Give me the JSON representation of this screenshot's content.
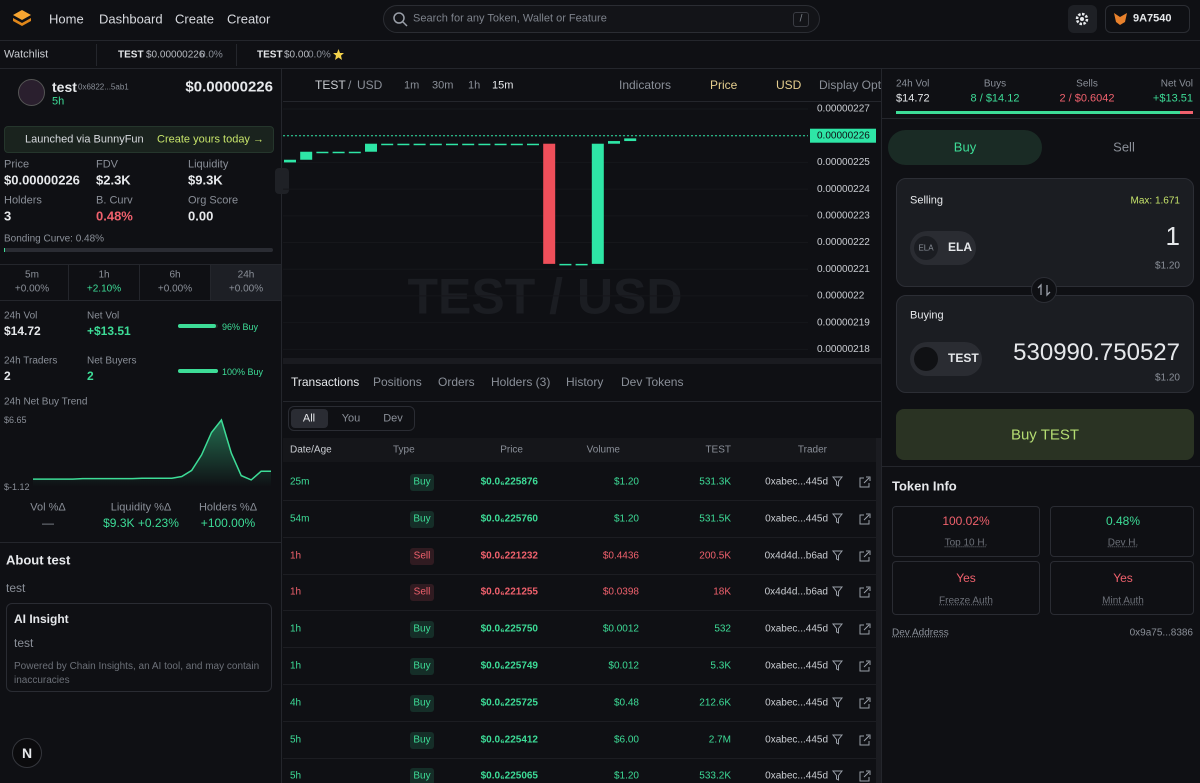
{
  "nav": {
    "links": [
      "Home",
      "Dashboard",
      "Create",
      "Creator"
    ],
    "search_placeholder": "Search for any Token, Wallet or Feature",
    "search_shortcut": "/",
    "wallet": "9A7540"
  },
  "watchlist": {
    "label": "Watchlist",
    "items": [
      {
        "symbol": "TEST",
        "price": "$0.00000226",
        "change": "0.0%"
      },
      {
        "symbol": "TEST",
        "price": "$0.00",
        "change": "0.0%"
      }
    ]
  },
  "token": {
    "name": "test",
    "address": "0x6822...5ab1",
    "age": "5h",
    "price": "$0.00000226"
  },
  "launch_banner": {
    "text": "Launched via BunnyFun",
    "link": "Create yours today →"
  },
  "stats": [
    {
      "label": "Price",
      "value": "$0.00000226"
    },
    {
      "label": "FDV",
      "value": "$2.3K"
    },
    {
      "label": "Liquidity",
      "value": "$9.3K"
    },
    {
      "label": "Holders",
      "value": "3"
    },
    {
      "label": "B. Curv",
      "value": "0.48%",
      "color": "#f0616d"
    },
    {
      "label": "Org Score",
      "value": "0.00"
    }
  ],
  "bonding_curve": {
    "label": "Bonding Curve: 0.48%",
    "percent": 0.48
  },
  "timeframes": [
    {
      "label": "5m",
      "change": "+0.00%",
      "color": "#8a8f98"
    },
    {
      "label": "1h",
      "change": "+2.10%",
      "color": "#3ddc97"
    },
    {
      "label": "6h",
      "change": "+0.00%",
      "color": "#8a8f98"
    },
    {
      "label": "24h",
      "change": "+0.00%",
      "color": "#8a8f98"
    }
  ],
  "activity": [
    {
      "label": "24h Vol",
      "value": "$14.72",
      "color": "#e6e8eb"
    },
    {
      "label": "Net Vol",
      "value": "+$13.51",
      "color": "#3ddc97"
    },
    {
      "label": "24h Traders",
      "value": "2",
      "color": "#e6e8eb"
    },
    {
      "label": "Net Buyers",
      "value": "2",
      "color": "#3ddc97"
    }
  ],
  "buy_ratios": [
    {
      "label": "96% Buy",
      "value": 96
    },
    {
      "label": "100% Buy",
      "value": 100
    }
  ],
  "trend": {
    "title": "24h Net Buy Trend",
    "ylim": [
      -1.12,
      6.65
    ],
    "yticks": [
      {
        "value": 6.65,
        "label": "$6.65"
      },
      {
        "value": -1.12,
        "label": "$-1.12"
      }
    ],
    "color": "#3ddc97",
    "values": [
      -0.2,
      -0.2,
      -0.2,
      -0.2,
      -0.2,
      -0.15,
      -0.15,
      -0.15,
      -0.15,
      -0.15,
      -0.15,
      -0.1,
      -0.1,
      -0.1,
      -0.1,
      0.1,
      0.8,
      2.6,
      5.2,
      6.65,
      2.8,
      0.2,
      -0.3,
      0.7,
      0.7
    ]
  },
  "deltas": [
    {
      "label": "Vol %Δ",
      "value": "—",
      "color": "#8a8f98"
    },
    {
      "label": "Liquidity %Δ",
      "value": "$9.3K +0.23%",
      "color": "#3ddc97"
    },
    {
      "label": "Holders %Δ",
      "value": "+100.00%",
      "color": "#3ddc97"
    }
  ],
  "about": {
    "title": "About test",
    "description": "test"
  },
  "ai_insight": {
    "title": "AI Insight",
    "text": "test",
    "disclaimer": "Powered by Chain Insights, an AI tool, and may contain inaccuracies"
  },
  "avatar_letter": "N",
  "chart_toolbar": {
    "base": "TEST",
    "separator": "/",
    "quote": "USD",
    "intervals": [
      "1m",
      "30m",
      "1h",
      "15m"
    ],
    "indicators": "Indicators",
    "price": "Price",
    "currency": "USD",
    "display": "Display Options"
  },
  "chart_data": {
    "type": "candlestick",
    "watermark": "TEST / USD",
    "up_color": "#2ee6a6",
    "down_color": "#ef4f5a",
    "grid": true,
    "ylim": [
      2.176e-06,
      2.273e-06
    ],
    "yticks": [
      2.27e-06,
      2.26e-06,
      2.25e-06,
      2.24e-06,
      2.23e-06,
      2.22e-06,
      2.21e-06,
      2.2e-06,
      2.19e-06,
      2.18e-06
    ],
    "current_price": 2.26e-06,
    "open": [
      2.25e-06,
      2.251e-06,
      2.254e-06,
      2.254e-06,
      2.254e-06,
      2.254e-06,
      2.257e-06,
      2.257e-06,
      2.257e-06,
      2.257e-06,
      2.257e-06,
      2.257e-06,
      2.257e-06,
      2.257e-06,
      2.257e-06,
      2.257e-06,
      2.257e-06,
      2.212e-06,
      2.212e-06,
      2.212e-06,
      2.257e-06,
      2.258e-06
    ],
    "close": [
      2.251e-06,
      2.254e-06,
      2.254e-06,
      2.254e-06,
      2.254e-06,
      2.257e-06,
      2.257e-06,
      2.257e-06,
      2.257e-06,
      2.257e-06,
      2.257e-06,
      2.257e-06,
      2.257e-06,
      2.257e-06,
      2.257e-06,
      2.257e-06,
      2.212e-06,
      2.212e-06,
      2.212e-06,
      2.257e-06,
      2.258e-06,
      2.259e-06
    ]
  },
  "transactions": {
    "tabs": [
      "Transactions",
      "Positions",
      "Orders",
      "Holders (3)",
      "History",
      "Dev Tokens"
    ],
    "filters": [
      "All",
      "You",
      "Dev"
    ],
    "columns": [
      "Date/Age",
      "Type",
      "Price",
      "Volume",
      "TEST",
      "Trader"
    ],
    "rows": [
      {
        "age": "25m",
        "type": "Buy",
        "price": "$0.0₆225876",
        "volume": "$1.20",
        "amount": "531.3K",
        "trader": "0xabec...445d",
        "color": "#3ddc97"
      },
      {
        "age": "54m",
        "type": "Buy",
        "price": "$0.0₆225760",
        "volume": "$1.20",
        "amount": "531.5K",
        "trader": "0xabec...445d",
        "color": "#3ddc97"
      },
      {
        "age": "1h",
        "type": "Sell",
        "price": "$0.0₆221232",
        "volume": "$0.4436",
        "amount": "200.5K",
        "trader": "0x4d4d...b6ad",
        "color": "#f0616d"
      },
      {
        "age": "1h",
        "type": "Sell",
        "price": "$0.0₆221255",
        "volume": "$0.0398",
        "amount": "18K",
        "trader": "0x4d4d...b6ad",
        "color": "#f0616d"
      },
      {
        "age": "1h",
        "type": "Buy",
        "price": "$0.0₆225750",
        "volume": "$0.0012",
        "amount": "532",
        "trader": "0xabec...445d",
        "color": "#3ddc97"
      },
      {
        "age": "1h",
        "type": "Buy",
        "price": "$0.0₆225749",
        "volume": "$0.012",
        "amount": "5.3K",
        "trader": "0xabec...445d",
        "color": "#3ddc97"
      },
      {
        "age": "4h",
        "type": "Buy",
        "price": "$0.0₆225725",
        "volume": "$0.48",
        "amount": "212.6K",
        "trader": "0xabec...445d",
        "color": "#3ddc97"
      },
      {
        "age": "5h",
        "type": "Buy",
        "price": "$0.0₆225412",
        "volume": "$6.00",
        "amount": "2.7M",
        "trader": "0xabec...445d",
        "color": "#3ddc97"
      },
      {
        "age": "5h",
        "type": "Buy",
        "price": "$0.0₆225065",
        "volume": "$1.20",
        "amount": "533.2K",
        "trader": "0xabec...445d",
        "color": "#3ddc97"
      }
    ]
  },
  "trade_stats": [
    {
      "label": "24h Vol",
      "value": "$14.72",
      "color": "#e6e8eb"
    },
    {
      "label": "Buys",
      "value": "8 / $14.12",
      "color": "#3ddc97"
    },
    {
      "label": "Sells",
      "value": "2 / $0.6042",
      "color": "#f0616d"
    },
    {
      "label": "Net Vol",
      "value": "+$13.51",
      "color": "#3ddc97"
    }
  ],
  "trade": {
    "tabs": [
      "Buy",
      "Sell"
    ],
    "selling_label": "Selling",
    "max": "Max: 1.671",
    "sell_token_icon": "ELA",
    "sell_token": "ELA",
    "sell_amount": "1",
    "sell_usd": "$1.20",
    "buying_label": "Buying",
    "buy_token": "TEST",
    "buy_amount": "530990.750527",
    "buy_usd": "$1.20",
    "button": "Buy TEST"
  },
  "token_info": {
    "title": "Token Info",
    "cards": [
      {
        "value": "100.02%",
        "label": "Top 10 H.",
        "color": "#f0616d"
      },
      {
        "value": "0.48%",
        "label": "Dev H.",
        "color": "#3ddc97"
      },
      {
        "value": "Yes",
        "label": "Freeze Auth",
        "color": "#f0616d"
      },
      {
        "value": "Yes",
        "label": "Mint Auth",
        "color": "#f0616d"
      }
    ],
    "dev_address_label": "Dev Address",
    "dev_address": "0x9a75...8386"
  }
}
